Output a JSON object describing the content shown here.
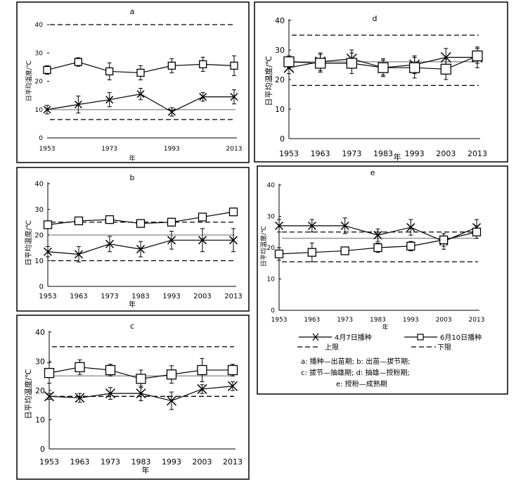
{
  "legend": {
    "series1": "4月7日播种",
    "series2": "6月10日播种",
    "upper": "上限",
    "lower": "下限",
    "note1": "a: 播种—出苗期; b: 出苗—拔节期;",
    "note2": "c: 拔节—抽雄期; d: 抽雄—授粉期;",
    "note3": "e: 授粉—成熟期"
  },
  "chart_data": [
    {
      "id": "a",
      "type": "line",
      "title": "a",
      "xlabel": "年",
      "ylabel": "日平均温度/℃",
      "x": [
        1953,
        1963,
        1973,
        1983,
        1993,
        2003,
        2013
      ],
      "xtick_labels": [
        "1953",
        "1973",
        "1993",
        "2013"
      ],
      "ylim": [
        0,
        40
      ],
      "yticks": [
        0,
        10,
        20,
        30,
        40
      ],
      "hlines": {
        "upper": 40,
        "lower": 6.5,
        "gray": 10
      },
      "series": [
        {
          "name": "4月7日播种",
          "values": [
            10,
            11.8,
            13.5,
            15.5,
            9.2,
            14.5,
            14.5
          ],
          "err": [
            1.5,
            3,
            2.5,
            2,
            1.5,
            1.5,
            2.5
          ]
        },
        {
          "name": "6月10日播种",
          "values": [
            24,
            26.8,
            23.5,
            23,
            25.5,
            26,
            25.5
          ],
          "err": [
            1.5,
            1.5,
            3,
            2.5,
            2.5,
            2.5,
            3.5
          ]
        }
      ]
    },
    {
      "id": "b",
      "type": "line",
      "title": "b",
      "xlabel": "年",
      "ylabel": "日平均温度/℃",
      "x": [
        1953,
        1963,
        1973,
        1983,
        1993,
        2003,
        2013
      ],
      "xtick_labels": [
        "1953",
        "1963",
        "1973",
        "1983",
        "1993",
        "2003",
        "2013"
      ],
      "ylim": [
        0,
        40
      ],
      "yticks": [
        0,
        10,
        20,
        30,
        40
      ],
      "hlines": {
        "upper": 25,
        "lower": 10,
        "gray": 20
      },
      "series": [
        {
          "name": "4月7日播种",
          "values": [
            13.5,
            12.5,
            16.5,
            14.5,
            18,
            18,
            18
          ],
          "err": [
            2,
            3,
            3,
            3,
            3.5,
            4.5,
            4.5
          ]
        },
        {
          "name": "6月10日播种",
          "values": [
            24,
            25.5,
            26,
            24.5,
            25,
            27,
            29
          ],
          "err": [
            1,
            1.5,
            1.5,
            1.5,
            1.5,
            1.5,
            1
          ]
        }
      ]
    },
    {
      "id": "c",
      "type": "line",
      "title": "c",
      "xlabel": "年",
      "ylabel": "日平均温度/℃",
      "x": [
        1953,
        1963,
        1973,
        1983,
        1993,
        2003,
        2013
      ],
      "xtick_labels": [
        "1953",
        "1963",
        "1973",
        "1983",
        "1993",
        "2003",
        "2013"
      ],
      "ylim": [
        0,
        40
      ],
      "yticks": [
        0,
        10,
        20,
        30,
        40
      ],
      "hlines": {
        "upper": 35,
        "lower": 18,
        "gray": 25
      },
      "series": [
        {
          "name": "4月7日播种",
          "values": [
            18,
            17.5,
            19,
            19,
            16.5,
            20.5,
            21.5
          ],
          "err": [
            1,
            1.5,
            2,
            2.5,
            3,
            1.5,
            1.5
          ]
        },
        {
          "name": "6月10日播种",
          "values": [
            26,
            28,
            27,
            24,
            25.5,
            27,
            27
          ],
          "err": [
            3.5,
            2.5,
            2,
            3,
            3,
            4,
            2
          ]
        }
      ]
    },
    {
      "id": "d",
      "type": "line",
      "title": "d",
      "xlabel": "年",
      "ylabel": "日平均温度/℃",
      "x": [
        1953,
        1963,
        1973,
        1983,
        1993,
        2003,
        2013
      ],
      "xtick_labels": [
        "1953",
        "1963",
        "1973",
        "1983",
        "1993",
        "2003",
        "2013"
      ],
      "ylim": [
        0,
        40
      ],
      "yticks": [
        0,
        10,
        20,
        30,
        40
      ],
      "hlines": {
        "upper": 35,
        "lower": 18,
        "gray": 26
      },
      "series": [
        {
          "name": "4月7日播种",
          "values": [
            24,
            26,
            27,
            24,
            25,
            27.5,
            27.5
          ],
          "err": [
            2,
            3,
            3,
            2.5,
            3,
            3,
            3.5
          ]
        },
        {
          "name": "6月10日播种",
          "values": [
            26,
            25.5,
            25.5,
            24,
            24,
            23.5,
            28
          ],
          "err": [
            2,
            3,
            3.5,
            3,
            3.5,
            3.5,
            2.5
          ]
        }
      ]
    },
    {
      "id": "e",
      "type": "line",
      "title": "e",
      "xlabel": "年",
      "ylabel": "日平均温度/℃",
      "x": [
        1953,
        1963,
        1973,
        1983,
        1993,
        2003,
        2013
      ],
      "xtick_labels": [
        "1953",
        "1963",
        "1973",
        "1983",
        "1993",
        "2003",
        "2013"
      ],
      "ylim": [
        0,
        40
      ],
      "yticks": [
        0,
        10,
        20,
        30,
        40
      ],
      "hlines": {
        "upper": 25,
        "lower": 15.5,
        "gray": 23
      },
      "series": [
        {
          "name": "4月7日播种",
          "values": [
            27,
            27,
            27,
            24,
            26.5,
            22,
            26.5
          ],
          "err": [
            2,
            2,
            2.5,
            2,
            2.5,
            2.5,
            2.5
          ]
        },
        {
          "name": "6月10日播种",
          "values": [
            18,
            18.5,
            19,
            20,
            20.5,
            22.5,
            25
          ],
          "err": [
            2,
            3,
            1,
            1.5,
            1.5,
            2,
            2
          ]
        }
      ]
    }
  ]
}
